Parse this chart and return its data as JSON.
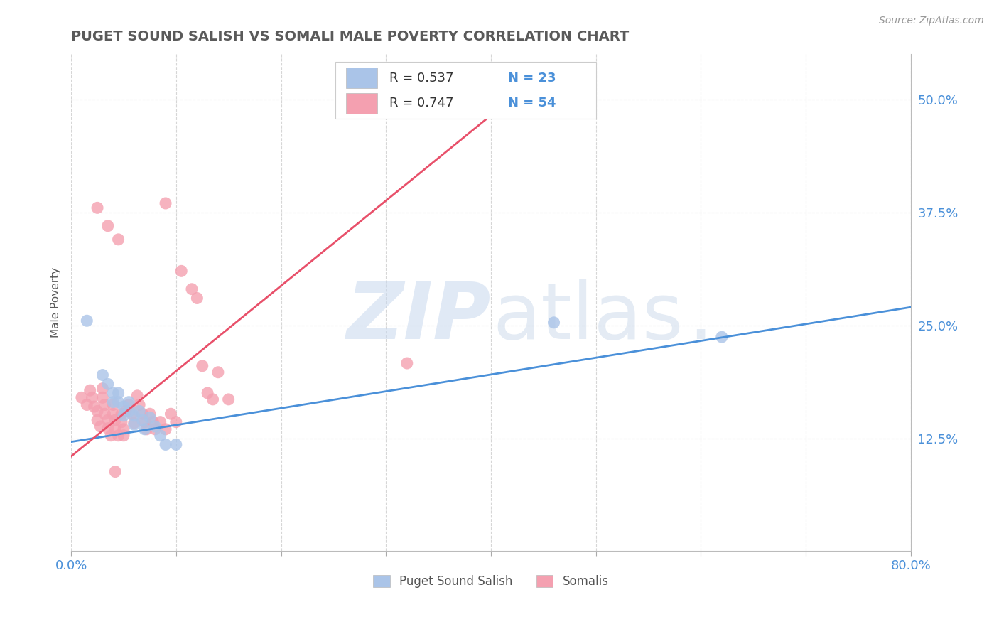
{
  "title": "PUGET SOUND SALISH VS SOMALI MALE POVERTY CORRELATION CHART",
  "source": "Source: ZipAtlas.com",
  "ylabel": "Male Poverty",
  "xlim": [
    0.0,
    0.8
  ],
  "ylim": [
    0.0,
    0.55
  ],
  "xticks": [
    0.0,
    0.1,
    0.2,
    0.3,
    0.4,
    0.5,
    0.6,
    0.7,
    0.8
  ],
  "xtick_labels_show": [
    "0.0%",
    "",
    "",
    "",
    "",
    "",
    "",
    "",
    "80.0%"
  ],
  "ytick_positions": [
    0.125,
    0.25,
    0.375,
    0.5
  ],
  "ytick_labels": [
    "12.5%",
    "25.0%",
    "37.5%",
    "50.0%"
  ],
  "title_color": "#5a5a5a",
  "axis_color": "#4a90d9",
  "grid_color": "#cccccc",
  "legend_r1": "R = 0.537",
  "legend_n1": "N = 23",
  "legend_r2": "R = 0.747",
  "legend_n2": "N = 54",
  "salish_color": "#aac4e8",
  "somali_color": "#f4a0b0",
  "salish_line_color": "#4a90d9",
  "somali_line_color": "#e8506a",
  "salish_scatter": [
    [
      0.015,
      0.255
    ],
    [
      0.03,
      0.195
    ],
    [
      0.035,
      0.185
    ],
    [
      0.04,
      0.175
    ],
    [
      0.04,
      0.165
    ],
    [
      0.045,
      0.175
    ],
    [
      0.045,
      0.165
    ],
    [
      0.05,
      0.16
    ],
    [
      0.05,
      0.15
    ],
    [
      0.055,
      0.165
    ],
    [
      0.055,
      0.155
    ],
    [
      0.06,
      0.15
    ],
    [
      0.06,
      0.14
    ],
    [
      0.065,
      0.155
    ],
    [
      0.068,
      0.145
    ],
    [
      0.07,
      0.135
    ],
    [
      0.075,
      0.148
    ],
    [
      0.08,
      0.138
    ],
    [
      0.085,
      0.128
    ],
    [
      0.09,
      0.118
    ],
    [
      0.1,
      0.118
    ],
    [
      0.46,
      0.253
    ],
    [
      0.62,
      0.237
    ]
  ],
  "somali_scatter": [
    [
      0.01,
      0.17
    ],
    [
      0.015,
      0.162
    ],
    [
      0.018,
      0.178
    ],
    [
      0.02,
      0.17
    ],
    [
      0.022,
      0.16
    ],
    [
      0.025,
      0.155
    ],
    [
      0.025,
      0.145
    ],
    [
      0.028,
      0.138
    ],
    [
      0.03,
      0.18
    ],
    [
      0.03,
      0.17
    ],
    [
      0.032,
      0.162
    ],
    [
      0.032,
      0.152
    ],
    [
      0.035,
      0.145
    ],
    [
      0.035,
      0.136
    ],
    [
      0.038,
      0.128
    ],
    [
      0.04,
      0.162
    ],
    [
      0.04,
      0.152
    ],
    [
      0.042,
      0.145
    ],
    [
      0.042,
      0.135
    ],
    [
      0.045,
      0.128
    ],
    [
      0.048,
      0.152
    ],
    [
      0.048,
      0.143
    ],
    [
      0.05,
      0.135
    ],
    [
      0.05,
      0.128
    ],
    [
      0.052,
      0.155
    ],
    [
      0.055,
      0.162
    ],
    [
      0.058,
      0.152
    ],
    [
      0.06,
      0.142
    ],
    [
      0.063,
      0.172
    ],
    [
      0.065,
      0.162
    ],
    [
      0.068,
      0.152
    ],
    [
      0.07,
      0.143
    ],
    [
      0.072,
      0.135
    ],
    [
      0.075,
      0.152
    ],
    [
      0.078,
      0.143
    ],
    [
      0.08,
      0.135
    ],
    [
      0.085,
      0.143
    ],
    [
      0.09,
      0.135
    ],
    [
      0.095,
      0.152
    ],
    [
      0.1,
      0.143
    ],
    [
      0.105,
      0.31
    ],
    [
      0.115,
      0.29
    ],
    [
      0.12,
      0.28
    ],
    [
      0.125,
      0.205
    ],
    [
      0.13,
      0.175
    ],
    [
      0.135,
      0.168
    ],
    [
      0.14,
      0.198
    ],
    [
      0.15,
      0.168
    ],
    [
      0.025,
      0.38
    ],
    [
      0.035,
      0.36
    ],
    [
      0.045,
      0.345
    ],
    [
      0.09,
      0.385
    ],
    [
      0.32,
      0.208
    ],
    [
      0.042,
      0.088
    ]
  ],
  "salish_trendline_x": [
    0.0,
    0.8
  ],
  "salish_trendline_y": [
    0.121,
    0.27
  ],
  "somali_trendline_x": [
    0.0,
    0.44
  ],
  "somali_trendline_y": [
    0.105,
    0.52
  ]
}
